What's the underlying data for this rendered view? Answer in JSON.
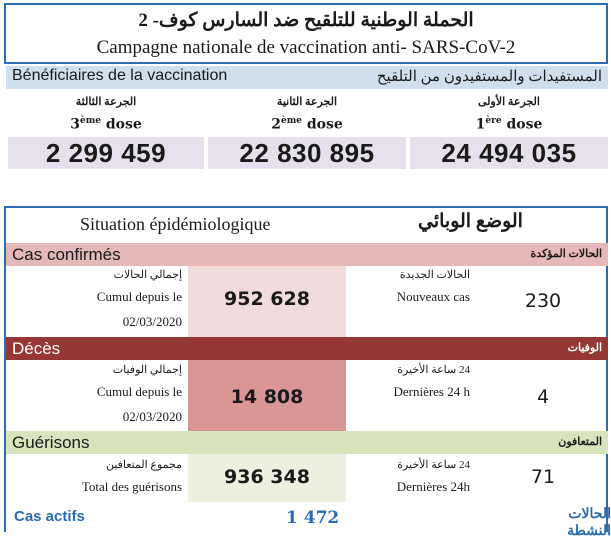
{
  "header": {
    "title_ar": "الحملة الوطنية للتلقيح ضد السارس كوف- 2",
    "title_fr": "Campagne nationale de vaccination anti- SARS-CoV-2"
  },
  "beneficiaries": {
    "label_fr": "Bénéficiaires de la vaccination",
    "label_ar": "المستفيدات والمستفيدون من التلقيح",
    "doses": [
      {
        "ar": "الجرعة الثالثة",
        "num": "3",
        "sup": "ème",
        "word": "dose",
        "value": "2 299 459"
      },
      {
        "ar": "الجرعة الثانية",
        "num": "2",
        "sup": "ème",
        "word": "dose",
        "value": "22 830 895"
      },
      {
        "ar": "الجرعة الأولى",
        "num": "1",
        "sup": "ère",
        "word": "dose",
        "value": "24 494 035"
      }
    ]
  },
  "epi": {
    "title_fr": "Situation épidémiologique",
    "title_ar": "الوضع الوبائي",
    "colors": {
      "confirmed_band": "#e6b8b7",
      "confirmed_cell": "#f2dcdb",
      "deaths_band": "#953735",
      "deaths_cell": "#d99694",
      "recov_band": "#d7e4bd",
      "recov_cell": "#ebf1de"
    },
    "confirmed": {
      "label_fr": "Cas confirmés",
      "label_ar": "الحالات المؤكدة",
      "cum_ar": "إجمالي الحالات",
      "cum_fr1": "Cumul depuis le",
      "cum_fr2": "02/03/2020",
      "cum_value": "952 628",
      "new_ar": "الحالات الجديدة",
      "new_fr": "Nouveaux cas",
      "new_value": "230"
    },
    "deaths": {
      "label_fr": "Décès",
      "label_ar": "الوفيات",
      "cum_ar": "إجمالي الوفيات",
      "cum_fr1": "Cumul depuis le",
      "cum_fr2": "02/03/2020",
      "cum_value": "14 808",
      "new_ar": "24 ساعة الأخيرة",
      "new_fr": "Dernières 24 h",
      "new_value": "4"
    },
    "recovered": {
      "label_fr": "Guérisons",
      "label_ar": "المتعافون",
      "cum_ar": "مجموع المتعافين",
      "cum_fr": "Total des guérisons",
      "cum_value": "936 348",
      "new_ar": "24 ساعة الأخيرة",
      "new_fr": "Dernières 24h",
      "new_value": "71"
    },
    "active": {
      "label_fr": "Cas actifs",
      "value": "1 472",
      "label_ar": "الحالات النشطة"
    }
  }
}
